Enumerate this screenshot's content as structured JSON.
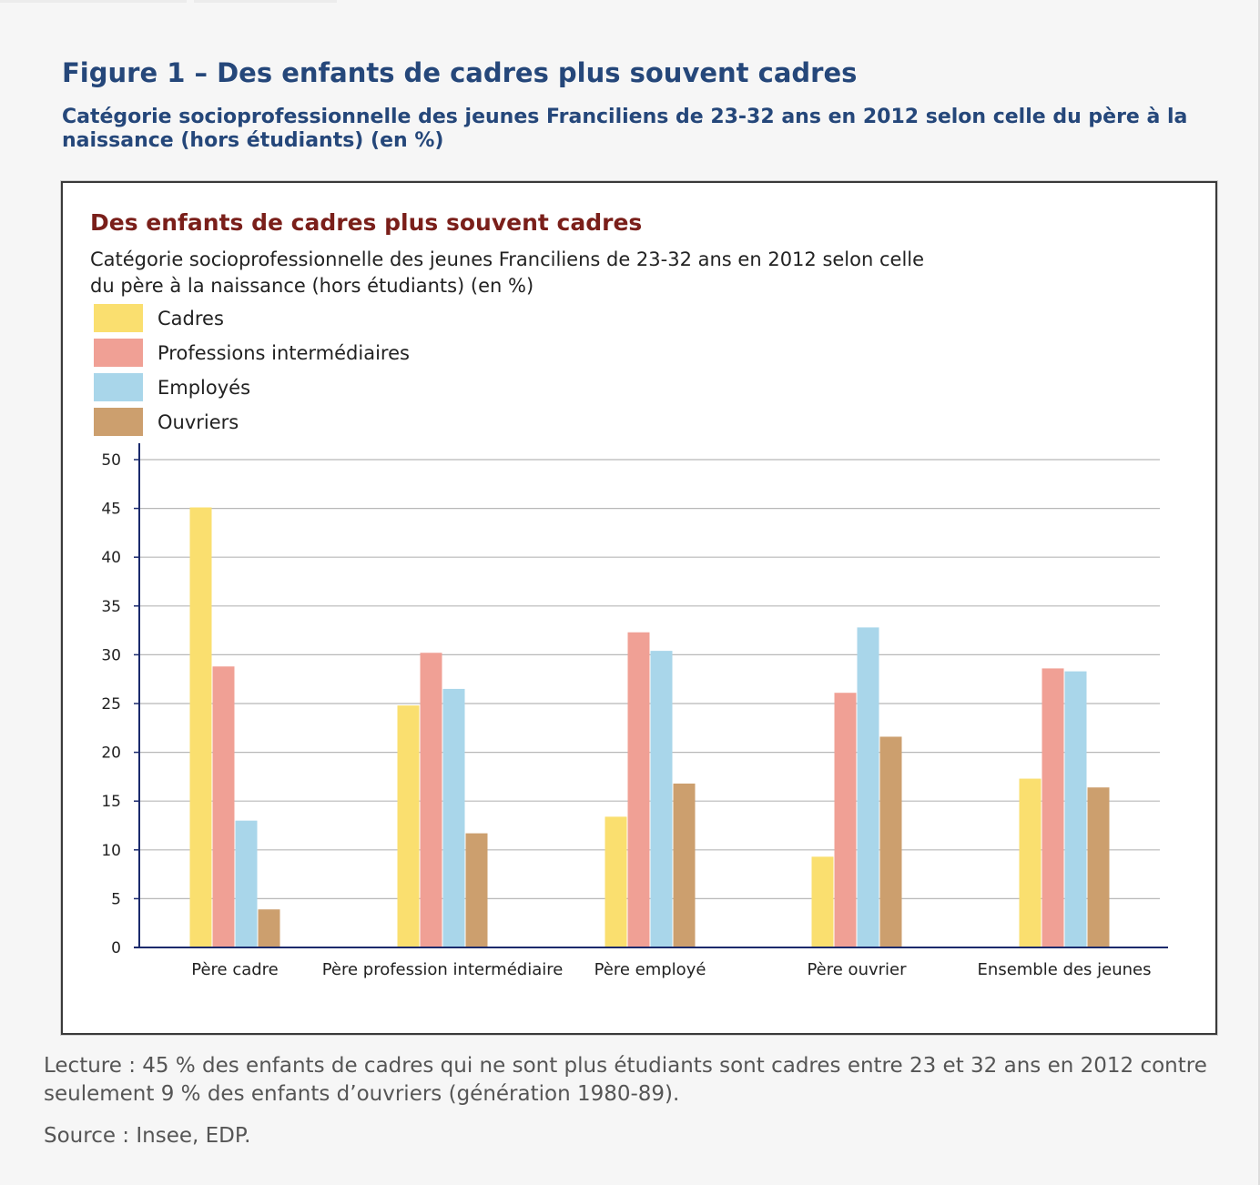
{
  "figure": {
    "title": "Figure 1 – Des enfants de cadres plus souvent cadres",
    "subtitle": "Catégorie socioprofessionnelle des jeunes Franciliens de 23-32 ans en 2012 selon celle du père à la naissance (hors étudiants) (en %)"
  },
  "notes": {
    "lecture": "Lecture : 45 % des enfants de cadres qui ne sont plus étudiants sont cadres entre 23 et 32 ans en 2012 contre seulement 9 % des enfants d’ouvriers (génération 1980-89).",
    "source": "Source : Insee, EDP."
  },
  "chart_data": {
    "type": "bar",
    "title": "Des enfants de cadres plus souvent cadres",
    "subtitle": "Catégorie socioprofessionnelle des jeunes Franciliens de 23-32 ans en 2012 selon celle du père à la naissance (hors étudiants) (en %)",
    "xlabel": "",
    "ylabel": "",
    "ylim": [
      0,
      50
    ],
    "yticks": [
      0,
      5,
      10,
      15,
      20,
      25,
      30,
      35,
      40,
      45,
      50
    ],
    "grid": true,
    "legend_position": "top-left",
    "categories": [
      "Père cadre",
      "Père profession intermédiaire",
      "Père employé",
      "Père ouvrier",
      "Ensemble des jeunes"
    ],
    "series": [
      {
        "name": "Cadres",
        "color": "#fadf6f",
        "values": [
          45.1,
          24.8,
          13.4,
          9.3,
          17.3
        ]
      },
      {
        "name": "Professions intermédiaires",
        "color": "#f0a095",
        "values": [
          28.8,
          30.2,
          32.3,
          26.1,
          28.6
        ]
      },
      {
        "name": "Employés",
        "color": "#a9d6ea",
        "values": [
          13.0,
          26.5,
          30.4,
          32.8,
          28.3
        ]
      },
      {
        "name": "Ouvriers",
        "color": "#cc9f6e",
        "values": [
          3.9,
          11.7,
          16.8,
          21.6,
          16.4
        ]
      }
    ]
  }
}
